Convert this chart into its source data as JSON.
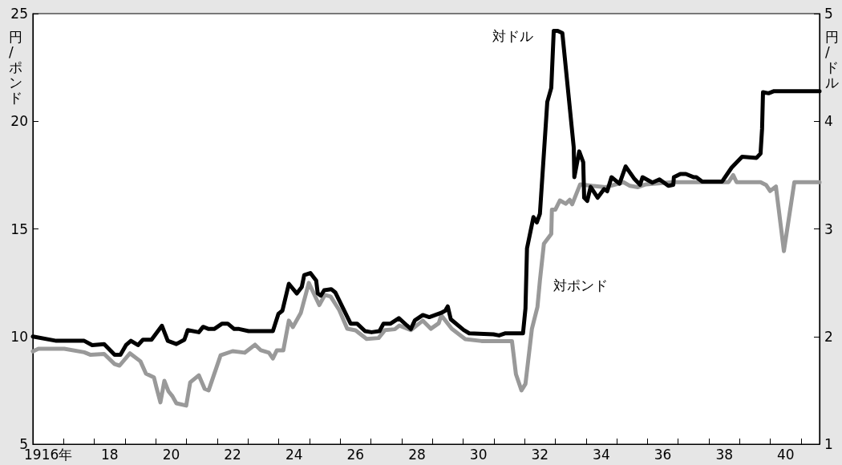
{
  "chart_data": {
    "type": "line",
    "ylabel": "円/ポンド",
    "y2label": "円/ドル",
    "xlim": [
      1915.5,
      1941.1
    ],
    "xticks": [
      {
        "value": 1916,
        "label": "1916年"
      },
      {
        "value": 1918,
        "label": "18"
      },
      {
        "value": 1920,
        "label": "20"
      },
      {
        "value": 1922,
        "label": "22"
      },
      {
        "value": 1924,
        "label": "24"
      },
      {
        "value": 1926,
        "label": "26"
      },
      {
        "value": 1928,
        "label": "28"
      },
      {
        "value": 1930,
        "label": "30"
      },
      {
        "value": 1932,
        "label": "32"
      },
      {
        "value": 1934,
        "label": "34"
      },
      {
        "value": 1936,
        "label": "36"
      },
      {
        "value": 1938,
        "label": "38"
      },
      {
        "value": 1940,
        "label": "40"
      },
      {
        "value": 1916.5,
        "label": null
      },
      {
        "value": 1917.5,
        "label": null
      },
      {
        "value": 1918.5,
        "label": null
      },
      {
        "value": 1919.5,
        "label": null
      },
      {
        "value": 1920.5,
        "label": null
      },
      {
        "value": 1921.5,
        "label": null
      },
      {
        "value": 1922.5,
        "label": null
      },
      {
        "value": 1923.5,
        "label": null
      },
      {
        "value": 1924.5,
        "label": null
      },
      {
        "value": 1925.5,
        "label": null
      },
      {
        "value": 1926.5,
        "label": null
      },
      {
        "value": 1927.5,
        "label": null
      },
      {
        "value": 1928.5,
        "label": null
      },
      {
        "value": 1929.5,
        "label": null
      },
      {
        "value": 1930.5,
        "label": null
      },
      {
        "value": 1931.5,
        "label": null
      },
      {
        "value": 1932.5,
        "label": null
      },
      {
        "value": 1933.5,
        "label": null
      },
      {
        "value": 1934.5,
        "label": null
      },
      {
        "value": 1935.5,
        "label": null
      },
      {
        "value": 1936.5,
        "label": null
      },
      {
        "value": 1937.5,
        "label": null
      },
      {
        "value": 1938.5,
        "label": null
      },
      {
        "value": 1939.5,
        "label": null
      },
      {
        "value": 1940.5,
        "label": null
      }
    ],
    "ylim": [
      5,
      25
    ],
    "yticks": [
      5,
      10,
      15,
      20,
      25
    ],
    "y2lim": [
      1,
      5
    ],
    "y2ticks": [
      1,
      2,
      3,
      4,
      5
    ],
    "grid": false,
    "legend": false,
    "marker": "none",
    "line_style": "solid",
    "series": [
      {
        "name": "対ポンド",
        "color": "#999999",
        "x": [
          1915.5,
          1915.68,
          1916.52,
          1917.17,
          1917.38,
          1917.82,
          1918.16,
          1918.32,
          1918.66,
          1919.0,
          1919.18,
          1919.44,
          1919.52,
          1919.65,
          1919.78,
          1919.91,
          1920.04,
          1920.17,
          1920.49,
          1920.62,
          1920.9,
          1921.09,
          1921.22,
          1921.61,
          1922.0,
          1922.39,
          1922.73,
          1922.92,
          1923.18,
          1923.31,
          1923.44,
          1923.65,
          1923.83,
          1923.96,
          1924.22,
          1924.48,
          1924.82,
          1925.0,
          1925.19,
          1925.47,
          1925.73,
          1926.0,
          1926.36,
          1926.75,
          1926.96,
          1927.28,
          1927.43,
          1927.8,
          1928.19,
          1928.45,
          1928.71,
          1928.79,
          1929.13,
          1929.57,
          1930.1,
          1931.09,
          1931.22,
          1931.4,
          1931.53,
          1931.74,
          1931.92,
          1932.0,
          1932.13,
          1932.37,
          1932.39,
          1932.5,
          1932.65,
          1932.84,
          1932.97,
          1933.05,
          1933.31,
          1933.7,
          1934.14,
          1934.72,
          1934.93,
          1935.19,
          1935.45,
          1936.31,
          1938.14,
          1938.29,
          1938.4,
          1939.18,
          1939.36,
          1939.49,
          1939.68,
          1939.94,
          1940.28,
          1941.1
        ],
        "values": [
          9.31,
          9.43,
          9.43,
          9.27,
          9.15,
          9.19,
          8.72,
          8.65,
          9.22,
          8.85,
          8.28,
          8.1,
          7.64,
          6.94,
          7.94,
          7.46,
          7.23,
          6.9,
          6.79,
          7.87,
          8.2,
          7.57,
          7.5,
          9.13,
          9.32,
          9.25,
          9.62,
          9.36,
          9.25,
          8.98,
          9.36,
          9.36,
          10.74,
          10.44,
          11.1,
          12.49,
          11.46,
          11.93,
          11.86,
          11.23,
          10.36,
          10.29,
          9.89,
          9.93,
          10.3,
          10.34,
          10.51,
          10.3,
          10.74,
          10.36,
          10.62,
          10.99,
          10.36,
          9.88,
          9.79,
          9.79,
          8.25,
          7.5,
          7.8,
          10.36,
          11.37,
          12.6,
          14.31,
          14.77,
          15.89,
          15.89,
          16.32,
          16.17,
          16.35,
          16.14,
          17.07,
          17.0,
          16.94,
          17.17,
          17.0,
          16.94,
          17.07,
          17.17,
          17.17,
          17.5,
          17.17,
          17.17,
          17.04,
          16.76,
          16.97,
          13.97,
          17.17,
          17.17
        ]
      },
      {
        "name": "対ドル",
        "color": "#000000",
        "axis": "y2",
        "x": [
          1915.5,
          1916.26,
          1917.17,
          1917.43,
          1917.82,
          1918.16,
          1918.35,
          1918.53,
          1918.69,
          1918.92,
          1919.08,
          1919.36,
          1919.7,
          1919.89,
          1920.17,
          1920.43,
          1920.54,
          1920.9,
          1921.04,
          1921.22,
          1921.4,
          1921.66,
          1921.84,
          1922.05,
          1922.21,
          1922.52,
          1923.31,
          1923.49,
          1923.62,
          1923.83,
          1924.09,
          1924.25,
          1924.33,
          1924.53,
          1924.72,
          1924.77,
          1924.87,
          1924.98,
          1925.21,
          1925.34,
          1925.84,
          1926.05,
          1926.31,
          1926.52,
          1926.78,
          1926.91,
          1927.14,
          1927.41,
          1927.8,
          1927.93,
          1928.19,
          1928.4,
          1928.79,
          1928.92,
          1929.0,
          1929.1,
          1929.52,
          1929.7,
          1930.49,
          1930.67,
          1930.88,
          1931.45,
          1931.53,
          1931.58,
          1931.79,
          1931.9,
          1932.0,
          1932.24,
          1932.37,
          1932.45,
          1932.58,
          1932.73,
          1933.1,
          1933.12,
          1933.28,
          1933.41,
          1933.44,
          1933.54,
          1933.65,
          1933.88,
          1934.09,
          1934.19,
          1934.33,
          1934.59,
          1934.79,
          1935.06,
          1935.26,
          1935.34,
          1935.66,
          1935.89,
          1936.18,
          1936.34,
          1936.36,
          1936.57,
          1936.75,
          1937.01,
          1937.09,
          1937.28,
          1937.93,
          1938.24,
          1938.58,
          1939.05,
          1939.18,
          1939.23,
          1939.26,
          1939.44,
          1939.62,
          1941.1
        ],
        "values": [
          2.0,
          1.96,
          1.96,
          1.92,
          1.93,
          1.83,
          1.83,
          1.92,
          1.96,
          1.92,
          1.97,
          1.97,
          2.1,
          1.96,
          1.93,
          1.97,
          2.06,
          2.04,
          2.09,
          2.07,
          2.07,
          2.12,
          2.12,
          2.07,
          2.07,
          2.05,
          2.05,
          2.21,
          2.24,
          2.49,
          2.4,
          2.46,
          2.57,
          2.59,
          2.52,
          2.4,
          2.38,
          2.43,
          2.44,
          2.41,
          2.12,
          2.12,
          2.05,
          2.04,
          2.05,
          2.12,
          2.12,
          2.17,
          2.07,
          2.15,
          2.2,
          2.18,
          2.22,
          2.24,
          2.28,
          2.16,
          2.06,
          2.03,
          2.02,
          2.01,
          2.03,
          2.03,
          2.26,
          2.82,
          3.11,
          3.06,
          3.14,
          4.18,
          4.31,
          4.84,
          4.84,
          4.82,
          3.76,
          3.48,
          3.72,
          3.62,
          3.29,
          3.26,
          3.39,
          3.29,
          3.37,
          3.35,
          3.48,
          3.42,
          3.58,
          3.47,
          3.41,
          3.48,
          3.43,
          3.46,
          3.4,
          3.41,
          3.48,
          3.51,
          3.51,
          3.48,
          3.48,
          3.44,
          3.44,
          3.57,
          3.67,
          3.66,
          3.7,
          3.93,
          4.27,
          4.26,
          4.28,
          4.28
        ]
      }
    ]
  }
}
